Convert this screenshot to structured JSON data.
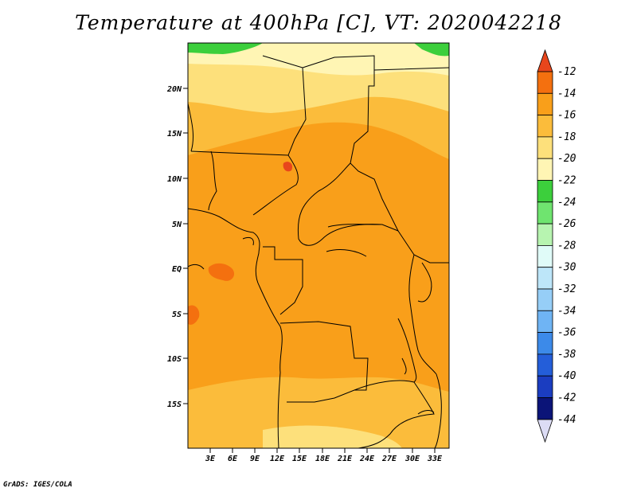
{
  "title": "Temperature at 400hPa [C], VT: 2020042218",
  "credit": "GrADS: IGES/COLA",
  "map": {
    "lat_ticks": [
      "20N",
      "15N",
      "10N",
      "5N",
      "EQ",
      "5S",
      "10S",
      "15S"
    ],
    "lon_ticks": [
      "3E",
      "6E",
      "9E",
      "12E",
      "15E",
      "18E",
      "21E",
      "24E",
      "27E",
      "30E",
      "33E"
    ]
  },
  "colorbar": {
    "labels": [
      "-12",
      "-14",
      "-16",
      "-18",
      "-20",
      "-22",
      "-24",
      "-26",
      "-28",
      "-30",
      "-32",
      "-34",
      "-36",
      "-38",
      "-40",
      "-42",
      "-44"
    ],
    "colors": [
      "#e8461c",
      "#f4700f",
      "#f99f1a",
      "#fbbc3b",
      "#fde07b",
      "#fff5b4",
      "#3ccf3c",
      "#6fe46f",
      "#b7f4b0",
      "#e0fbf8",
      "#bde6f9",
      "#96cef7",
      "#6fb4f4",
      "#3c8ae9",
      "#245ed9",
      "#1b3dc0",
      "#0b1478",
      "#dcdcf5"
    ]
  }
}
